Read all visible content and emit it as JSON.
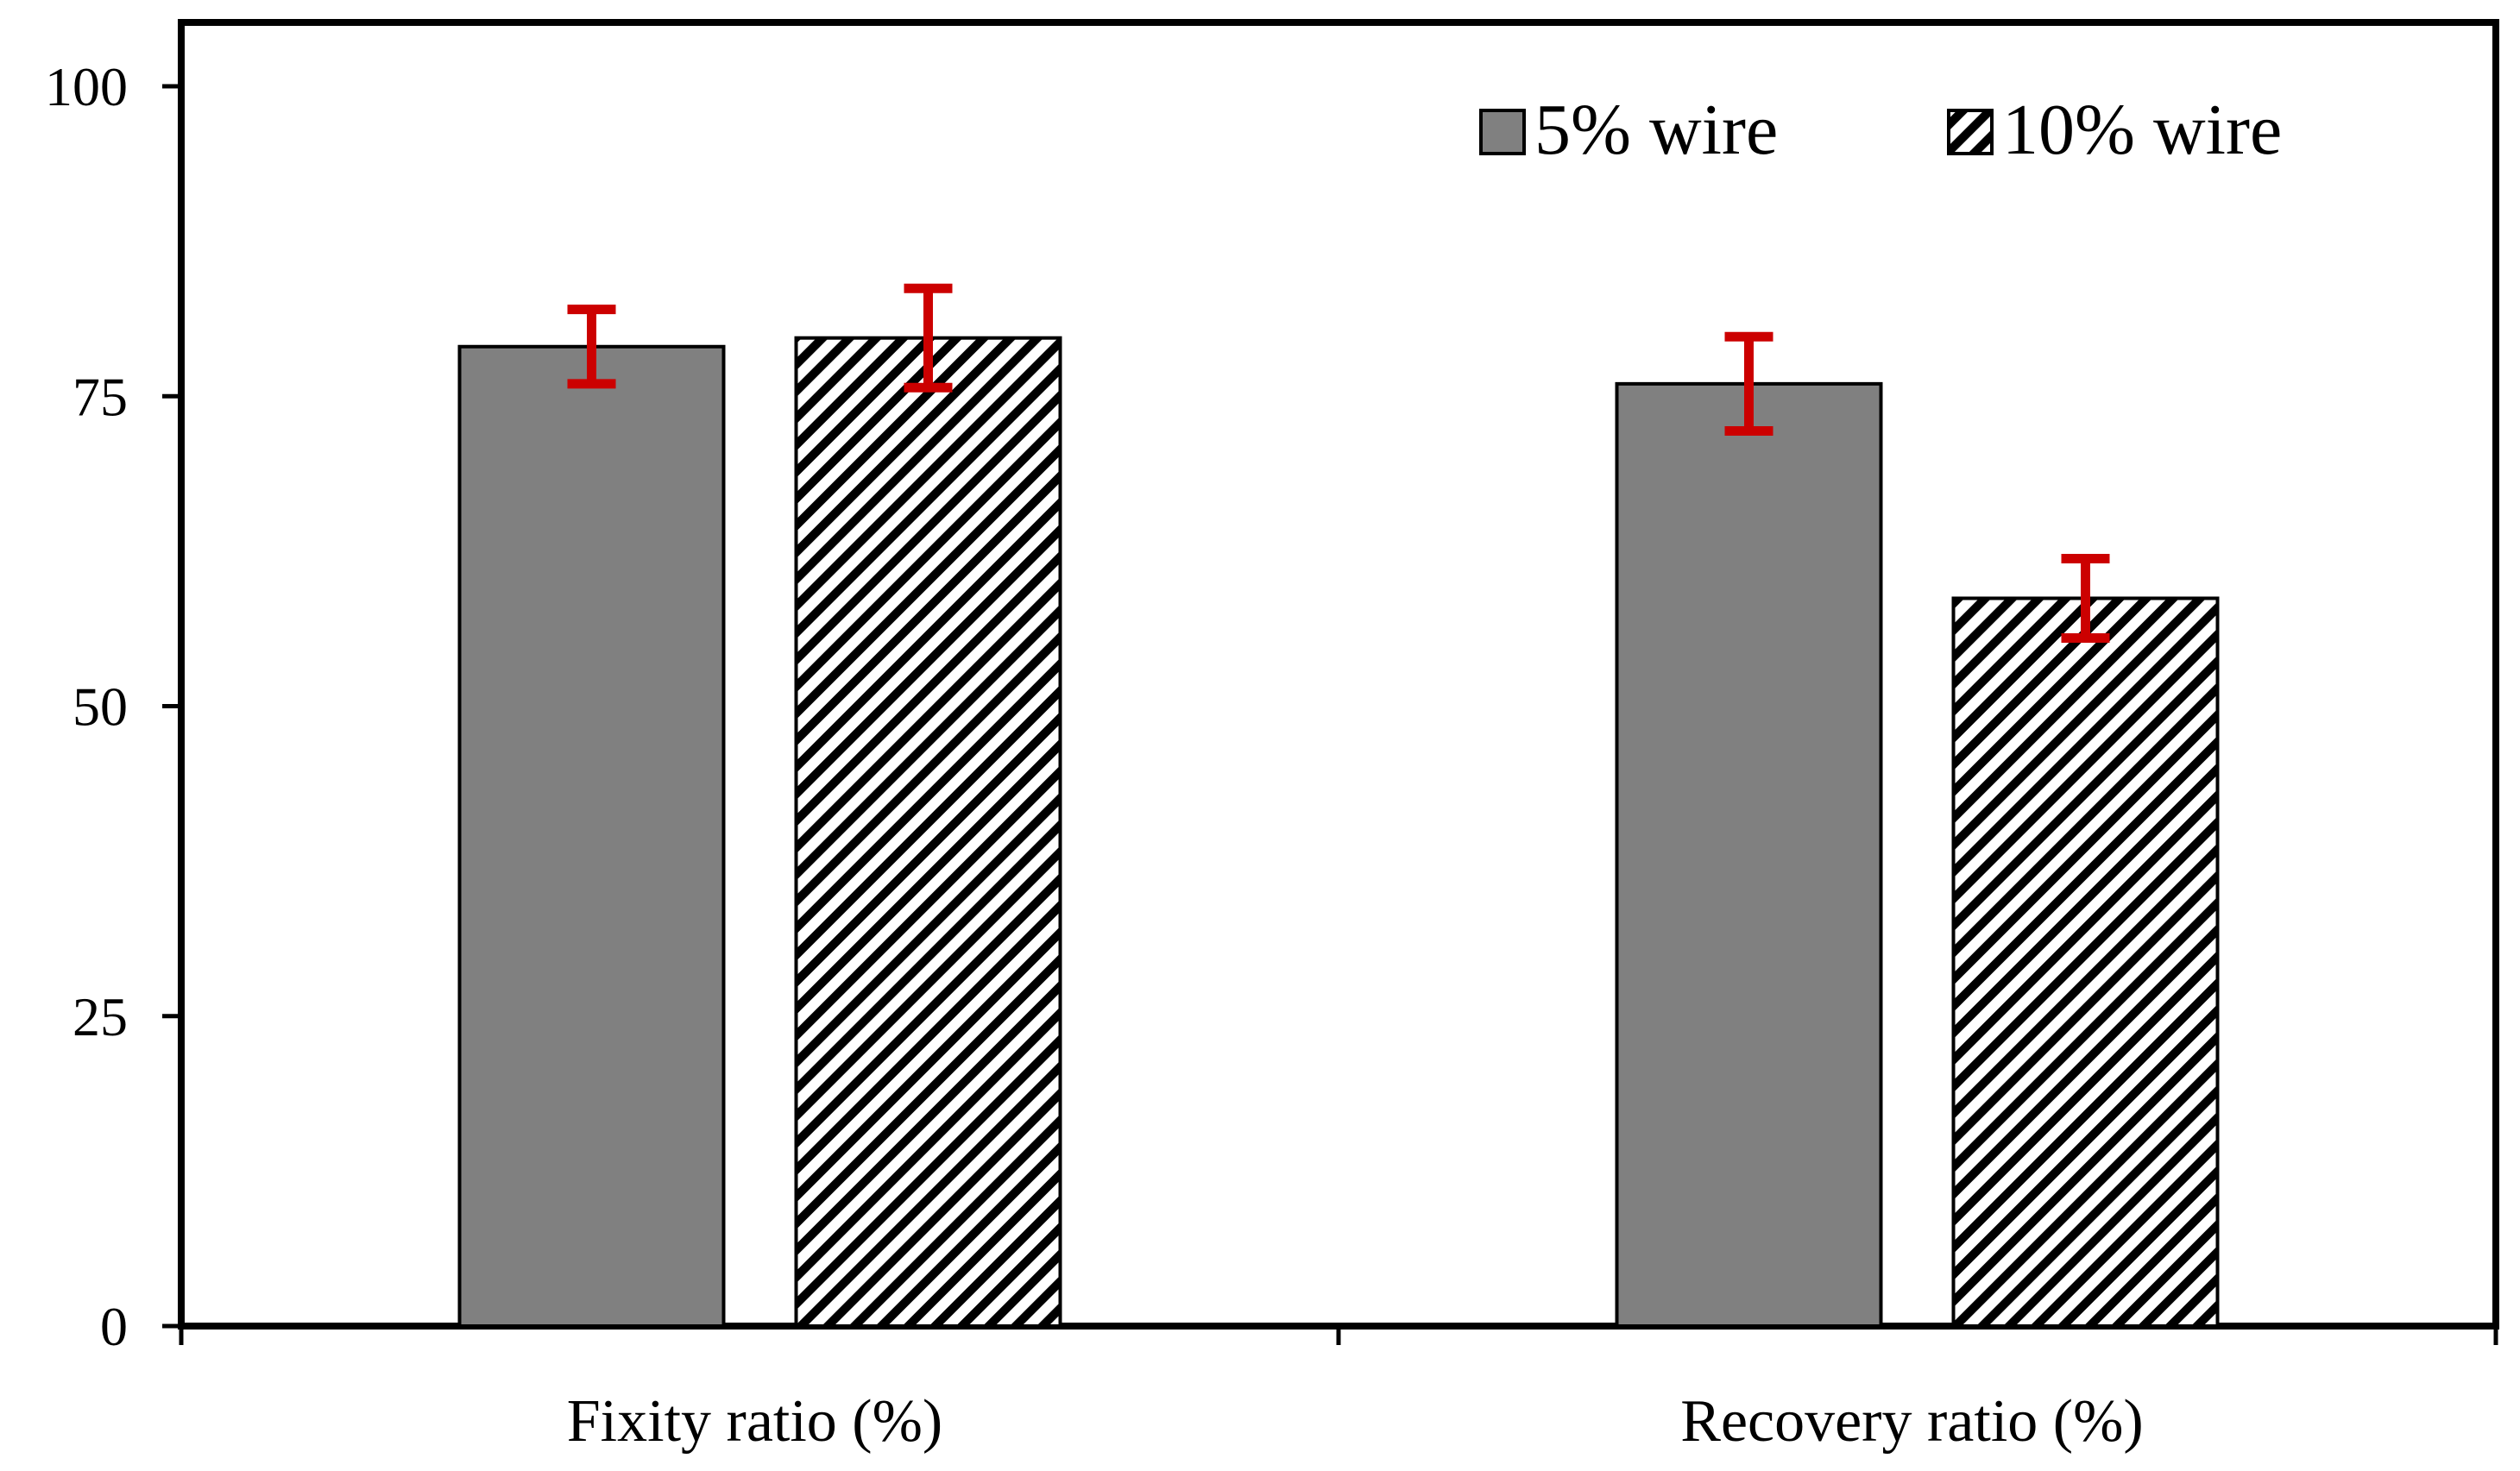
{
  "chart_data": {
    "type": "bar",
    "title": "",
    "xlabel": "",
    "ylabel": "",
    "ylim": [
      0,
      100
    ],
    "yticks": [
      0,
      25,
      50,
      75,
      100
    ],
    "grid": false,
    "legend_position": "top-right",
    "categories": [
      "Fixity ratio (%)",
      "Recovery ratio (%)"
    ],
    "series": [
      {
        "name": "5% wire",
        "fill": "solid",
        "color": "#808080",
        "values": [
          79.0,
          76.0
        ],
        "errors": [
          3.0,
          3.8
        ]
      },
      {
        "name": "10% wire",
        "fill": "hatched",
        "color": "#000000",
        "values": [
          79.7,
          58.7
        ],
        "errors": [
          4.0,
          3.2
        ]
      }
    ],
    "error_bar_color": "#cc0000"
  }
}
